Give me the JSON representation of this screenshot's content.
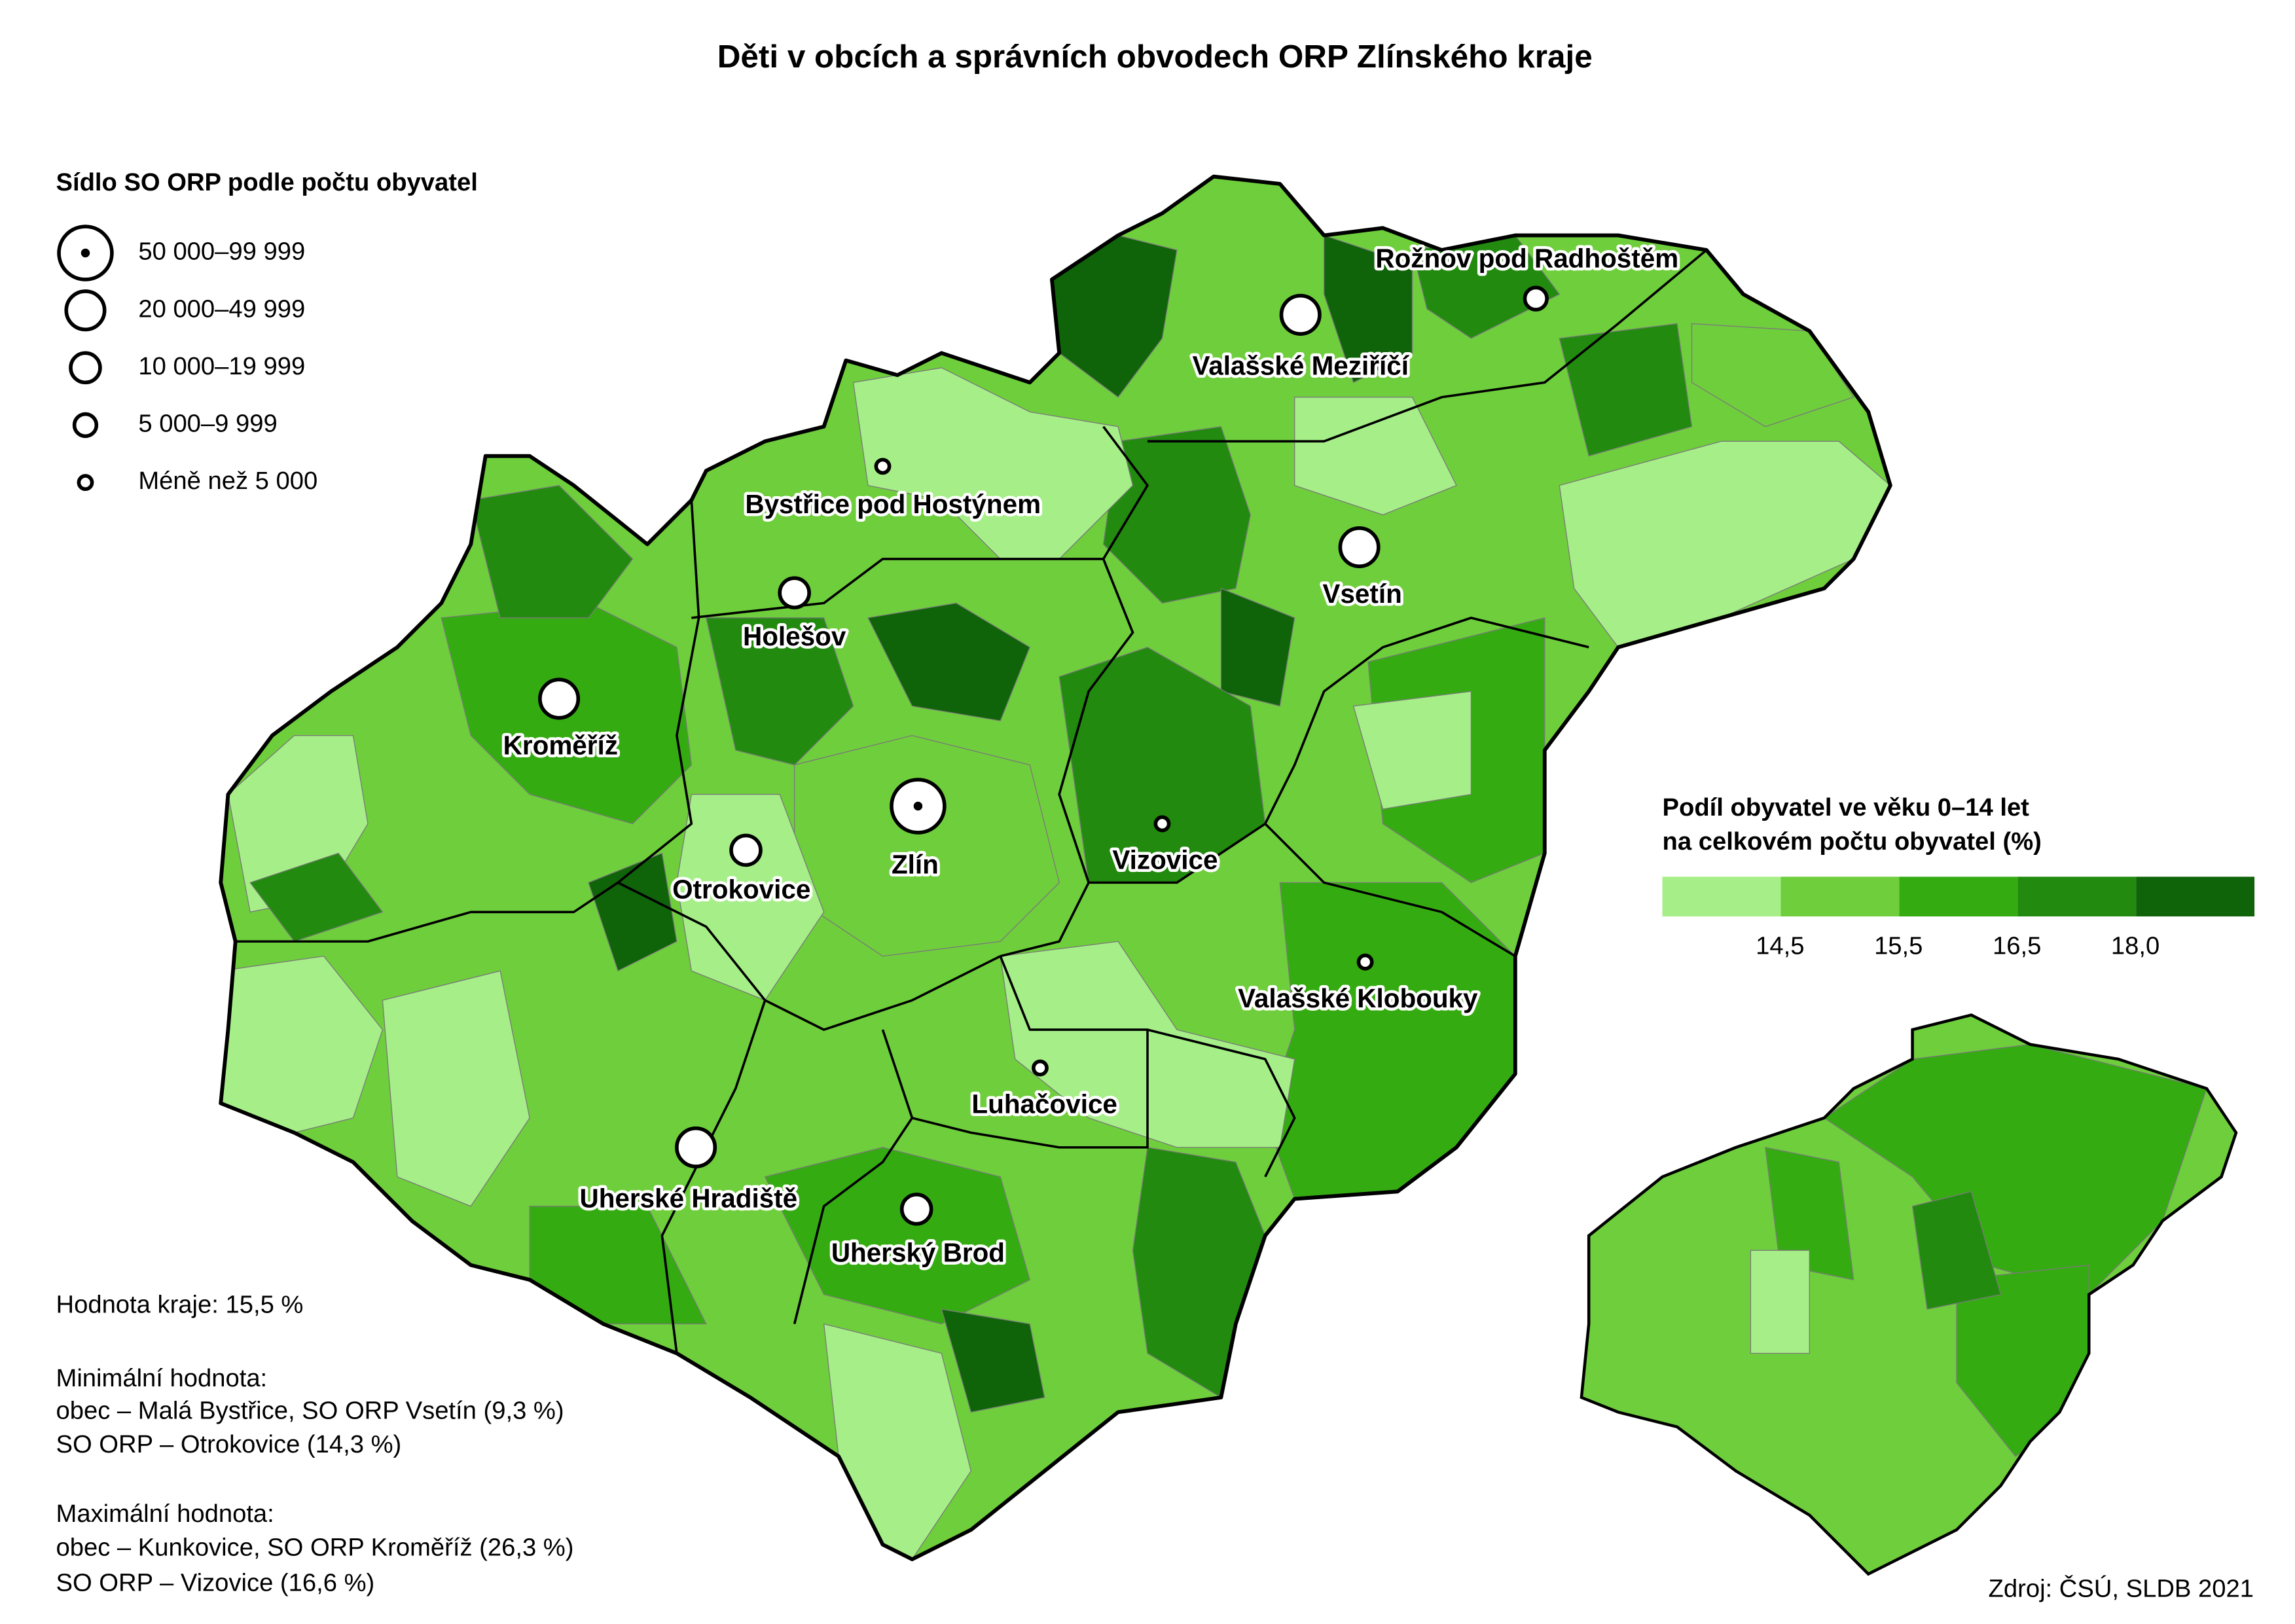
{
  "title": "Děti v obcích a správních obvodech ORP Zlínského kraje",
  "symbol_legend": {
    "title": "Sídlo SO ORP podle počtu obyvatel",
    "items": [
      "50 000–99 999",
      "20 000–49 999",
      "10 000–19 999",
      "5 000–9 999",
      "Méně než 5 000"
    ]
  },
  "color_legend": {
    "title": [
      "Podíl obyvatel ve věku 0–14 let",
      "na celkovém počtu obyvatel (%)"
    ],
    "colors": [
      "#a6ef88",
      "#6fce3c",
      "#35ab12",
      "#228a0f",
      "#0f6308"
    ],
    "breaks": [
      "14,5",
      "15,5",
      "16,5",
      "18,0"
    ]
  },
  "towns": [
    {
      "name": "Rožnov pod Radhoštěm",
      "size_class": 3
    },
    {
      "name": "Valašské Meziříčí",
      "size_class": 1
    },
    {
      "name": "Bystřice pod Hostýnem",
      "size_class": 4
    },
    {
      "name": "Vsetín",
      "size_class": 1
    },
    {
      "name": "Holešov",
      "size_class": 2
    },
    {
      "name": "Kroměříž",
      "size_class": 1
    },
    {
      "name": "Otrokovice",
      "size_class": 2
    },
    {
      "name": "Zlín",
      "size_class": 0
    },
    {
      "name": "Vizovice",
      "size_class": 4
    },
    {
      "name": "Valašské Klobouky",
      "size_class": 4
    },
    {
      "name": "Luhačovice",
      "size_class": 4
    },
    {
      "name": "Uherské Hradiště",
      "size_class": 1
    },
    {
      "name": "Uherský Brod",
      "size_class": 2
    }
  ],
  "notes": [
    "Hodnota kraje: 15,5 %",
    "Minimální hodnota:",
    "obec – Malá Bystřice, SO ORP Vsetín (9,3 %)",
    "SO ORP – Otrokovice (14,3 %)",
    "Maximální hodnota:",
    "obec – Kunkovice, SO ORP Kroměříž (26,3 %)",
    "SO ORP – Vizovice (16,6 %)"
  ],
  "source": "Zdroj: ČSÚ, SLDB 2021"
}
